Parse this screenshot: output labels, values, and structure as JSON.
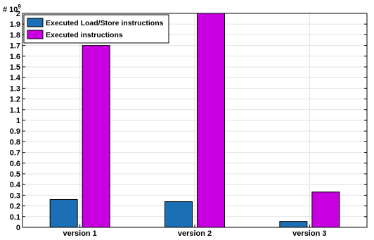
{
  "chart_data": {
    "type": "bar",
    "categories": [
      "version 1",
      "version 2",
      "version 3"
    ],
    "series": [
      {
        "name": "Executed Load/Store instructions",
        "values": [
          0.26,
          0.24,
          0.055
        ],
        "color": "#1b6fb5"
      },
      {
        "name": "Executed instructions",
        "values": [
          1.7,
          2.0,
          0.33
        ],
        "color": "#c800e0"
      }
    ],
    "ylim": [
      0,
      2.0
    ],
    "yticks": [
      0,
      0.1,
      0.2,
      0.3,
      0.4,
      0.5,
      0.6,
      0.7,
      0.8,
      0.9,
      1,
      1.1,
      1.2,
      1.3,
      1.4,
      1.5,
      1.6,
      1.7,
      1.8,
      1.9,
      2
    ],
    "scale_label": {
      "base": "# 10",
      "exponent": "9"
    },
    "grid": true,
    "legend_position": "top-left",
    "title": "",
    "xlabel": "",
    "ylabel": ""
  }
}
